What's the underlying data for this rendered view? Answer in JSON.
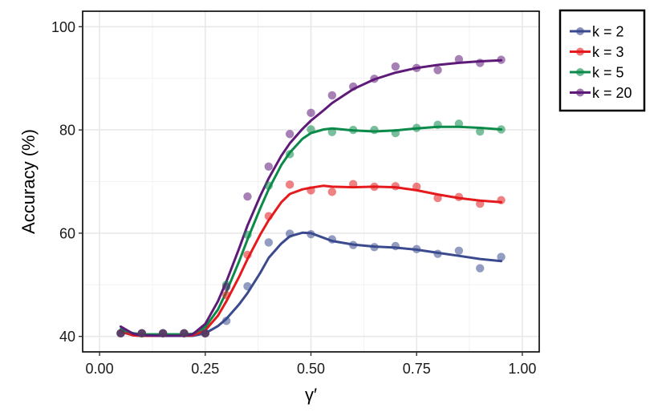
{
  "chart_data": {
    "type": "scatter",
    "title": "",
    "xlabel": "γ′",
    "ylabel": "Accuracy (%)",
    "xlim": [
      -0.04,
      1.04
    ],
    "ylim": [
      37,
      103
    ],
    "xticks": [
      0.0,
      0.25,
      0.5,
      0.75,
      1.0
    ],
    "xtick_labels": [
      "0.00",
      "0.25",
      "0.50",
      "0.75",
      "1.00"
    ],
    "yticks": [
      40,
      60,
      80,
      100
    ],
    "ytick_labels": [
      "40",
      "60",
      "80",
      "100"
    ],
    "grid": true,
    "legend_position": "right-top",
    "series": [
      {
        "name": "k = 2",
        "color": "#3b4a8e",
        "points": [
          [
            0.05,
            40.6
          ],
          [
            0.1,
            40.6
          ],
          [
            0.15,
            40.6
          ],
          [
            0.2,
            40.6
          ],
          [
            0.25,
            40.6
          ],
          [
            0.3,
            43.0
          ],
          [
            0.35,
            49.7
          ],
          [
            0.4,
            58.2
          ],
          [
            0.45,
            59.9
          ],
          [
            0.5,
            59.8
          ],
          [
            0.55,
            58.8
          ],
          [
            0.6,
            57.7
          ],
          [
            0.65,
            57.3
          ],
          [
            0.7,
            57.5
          ],
          [
            0.75,
            56.9
          ],
          [
            0.8,
            56.0
          ],
          [
            0.85,
            56.6
          ],
          [
            0.9,
            53.2
          ],
          [
            0.95,
            55.4
          ]
        ],
        "fit": [
          [
            0.05,
            40.9
          ],
          [
            0.08,
            40.2
          ],
          [
            0.1,
            40.1
          ],
          [
            0.15,
            40.1
          ],
          [
            0.2,
            40.1
          ],
          [
            0.22,
            40.1
          ],
          [
            0.25,
            40.6
          ],
          [
            0.28,
            42.0
          ],
          [
            0.3,
            43.4
          ],
          [
            0.33,
            46.2
          ],
          [
            0.35,
            48.4
          ],
          [
            0.38,
            52.3
          ],
          [
            0.4,
            55.2
          ],
          [
            0.43,
            58.0
          ],
          [
            0.45,
            59.4
          ],
          [
            0.48,
            60.1
          ],
          [
            0.5,
            60.0
          ],
          [
            0.53,
            59.1
          ],
          [
            0.55,
            58.5
          ],
          [
            0.6,
            57.8
          ],
          [
            0.65,
            57.4
          ],
          [
            0.7,
            57.2
          ],
          [
            0.75,
            56.8
          ],
          [
            0.8,
            56.2
          ],
          [
            0.85,
            55.6
          ],
          [
            0.9,
            55.0
          ],
          [
            0.95,
            54.6
          ]
        ]
      },
      {
        "name": "k = 3",
        "color": "#e41a1c",
        "points": [
          [
            0.05,
            40.6
          ],
          [
            0.1,
            40.6
          ],
          [
            0.15,
            40.6
          ],
          [
            0.2,
            40.6
          ],
          [
            0.25,
            40.6
          ],
          [
            0.3,
            48.0
          ],
          [
            0.35,
            55.8
          ],
          [
            0.4,
            63.3
          ],
          [
            0.45,
            69.4
          ],
          [
            0.5,
            68.3
          ],
          [
            0.55,
            68.0
          ],
          [
            0.6,
            69.5
          ],
          [
            0.65,
            69.0
          ],
          [
            0.7,
            69.1
          ],
          [
            0.75,
            69.0
          ],
          [
            0.8,
            66.8
          ],
          [
            0.85,
            67.0
          ],
          [
            0.9,
            65.7
          ],
          [
            0.95,
            66.4
          ]
        ],
        "fit": [
          [
            0.05,
            41.0
          ],
          [
            0.08,
            40.2
          ],
          [
            0.1,
            40.1
          ],
          [
            0.15,
            40.1
          ],
          [
            0.2,
            40.1
          ],
          [
            0.22,
            40.2
          ],
          [
            0.25,
            41.2
          ],
          [
            0.28,
            44.0
          ],
          [
            0.3,
            46.8
          ],
          [
            0.33,
            51.5
          ],
          [
            0.35,
            55.0
          ],
          [
            0.38,
            59.7
          ],
          [
            0.4,
            62.5
          ],
          [
            0.43,
            66.0
          ],
          [
            0.45,
            67.6
          ],
          [
            0.48,
            68.5
          ],
          [
            0.5,
            68.8
          ],
          [
            0.53,
            69.2
          ],
          [
            0.55,
            69.0
          ],
          [
            0.6,
            68.9
          ],
          [
            0.65,
            69.0
          ],
          [
            0.7,
            68.9
          ],
          [
            0.75,
            68.3
          ],
          [
            0.8,
            67.5
          ],
          [
            0.85,
            66.8
          ],
          [
            0.9,
            66.3
          ],
          [
            0.95,
            66.0
          ]
        ]
      },
      {
        "name": "k = 5",
        "color": "#0b8a4a",
        "points": [
          [
            0.05,
            40.6
          ],
          [
            0.1,
            40.6
          ],
          [
            0.15,
            40.6
          ],
          [
            0.2,
            40.6
          ],
          [
            0.25,
            40.6
          ],
          [
            0.3,
            50.0
          ],
          [
            0.35,
            59.7
          ],
          [
            0.4,
            69.2
          ],
          [
            0.45,
            75.3
          ],
          [
            0.5,
            80.1
          ],
          [
            0.55,
            79.6
          ],
          [
            0.6,
            80.0
          ],
          [
            0.65,
            80.0
          ],
          [
            0.7,
            79.4
          ],
          [
            0.75,
            80.4
          ],
          [
            0.8,
            81.0
          ],
          [
            0.85,
            81.2
          ],
          [
            0.9,
            79.7
          ],
          [
            0.95,
            80.1
          ]
        ],
        "fit": [
          [
            0.05,
            41.4
          ],
          [
            0.08,
            40.6
          ],
          [
            0.1,
            40.4
          ],
          [
            0.15,
            40.4
          ],
          [
            0.2,
            40.4
          ],
          [
            0.22,
            40.5
          ],
          [
            0.25,
            41.8
          ],
          [
            0.28,
            45.2
          ],
          [
            0.3,
            48.6
          ],
          [
            0.33,
            54.5
          ],
          [
            0.35,
            58.8
          ],
          [
            0.38,
            64.8
          ],
          [
            0.4,
            68.5
          ],
          [
            0.43,
            73.2
          ],
          [
            0.45,
            75.6
          ],
          [
            0.48,
            78.3
          ],
          [
            0.5,
            79.4
          ],
          [
            0.53,
            80.1
          ],
          [
            0.55,
            80.3
          ],
          [
            0.6,
            79.9
          ],
          [
            0.65,
            79.7
          ],
          [
            0.7,
            79.9
          ],
          [
            0.75,
            80.3
          ],
          [
            0.8,
            80.6
          ],
          [
            0.85,
            80.6
          ],
          [
            0.9,
            80.4
          ],
          [
            0.95,
            80.1
          ]
        ]
      },
      {
        "name": "k = 20",
        "color": "#5e1a78",
        "points": [
          [
            0.05,
            40.6
          ],
          [
            0.1,
            40.6
          ],
          [
            0.15,
            40.6
          ],
          [
            0.2,
            40.6
          ],
          [
            0.25,
            40.6
          ],
          [
            0.3,
            49.6
          ],
          [
            0.35,
            67.1
          ],
          [
            0.4,
            72.9
          ],
          [
            0.45,
            79.2
          ],
          [
            0.5,
            83.3
          ],
          [
            0.55,
            86.7
          ],
          [
            0.6,
            88.4
          ],
          [
            0.65,
            89.9
          ],
          [
            0.7,
            92.3
          ],
          [
            0.75,
            92.0
          ],
          [
            0.8,
            91.6
          ],
          [
            0.85,
            93.7
          ],
          [
            0.9,
            93.0
          ],
          [
            0.95,
            93.6
          ]
        ],
        "fit": [
          [
            0.05,
            41.9
          ],
          [
            0.08,
            40.5
          ],
          [
            0.1,
            40.2
          ],
          [
            0.15,
            40.1
          ],
          [
            0.2,
            40.1
          ],
          [
            0.22,
            40.4
          ],
          [
            0.25,
            42.4
          ],
          [
            0.28,
            46.8
          ],
          [
            0.3,
            50.6
          ],
          [
            0.33,
            57.0
          ],
          [
            0.35,
            61.5
          ],
          [
            0.38,
            67.2
          ],
          [
            0.4,
            70.6
          ],
          [
            0.43,
            75.0
          ],
          [
            0.45,
            77.4
          ],
          [
            0.48,
            80.2
          ],
          [
            0.5,
            81.8
          ],
          [
            0.53,
            83.8
          ],
          [
            0.55,
            85.2
          ],
          [
            0.6,
            87.9
          ],
          [
            0.65,
            89.8
          ],
          [
            0.7,
            91.1
          ],
          [
            0.75,
            92.0
          ],
          [
            0.8,
            92.6
          ],
          [
            0.85,
            93.0
          ],
          [
            0.9,
            93.3
          ],
          [
            0.95,
            93.5
          ]
        ]
      }
    ]
  }
}
